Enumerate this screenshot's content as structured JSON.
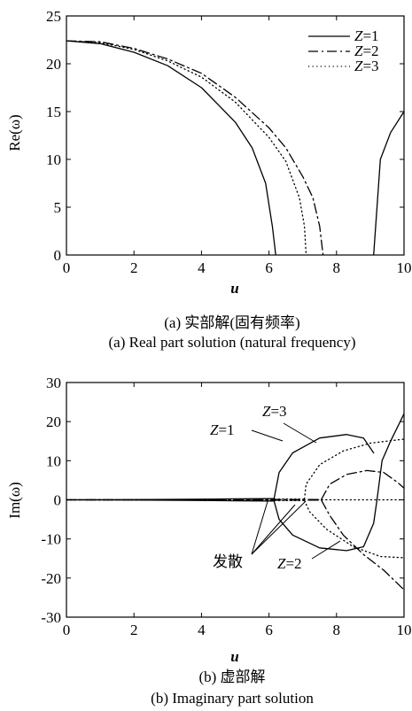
{
  "chart_data": [
    {
      "type": "line",
      "caption_cn": "(a) 实部解(固有频率)",
      "caption_en": "(a) Real part solution (natural frequency)",
      "xlabel": "u",
      "ylabel": "Re(ω)",
      "xlim": [
        0,
        10
      ],
      "ylim": [
        0,
        25
      ],
      "xticks": [
        0,
        2,
        4,
        6,
        8,
        10
      ],
      "yticks": [
        0,
        5,
        10,
        15,
        20,
        25
      ],
      "legend": "top-right",
      "series": [
        {
          "name": "Z=1",
          "style": "solid",
          "segments": [
            [
              [
                0,
                22.4
              ],
              [
                1,
                22.1
              ],
              [
                2,
                21.2
              ],
              [
                3,
                19.8
              ],
              [
                4,
                17.5
              ],
              [
                5,
                13.9
              ],
              [
                5.5,
                11.2
              ],
              [
                5.9,
                7.5
              ],
              [
                6.1,
                3.0
              ],
              [
                6.2,
                0
              ]
            ],
            [
              [
                9.1,
                0
              ],
              [
                9.3,
                10.0
              ],
              [
                9.6,
                12.8
              ],
              [
                10,
                15.0
              ]
            ]
          ]
        },
        {
          "name": "Z=2",
          "style": "dashdot",
          "segments": [
            [
              [
                0,
                22.4
              ],
              [
                1,
                22.3
              ],
              [
                2,
                21.6
              ],
              [
                3,
                20.5
              ],
              [
                4,
                19.0
              ],
              [
                5,
                16.5
              ],
              [
                6,
                13.3
              ],
              [
                6.5,
                11.2
              ],
              [
                7,
                8.2
              ],
              [
                7.3,
                6.0
              ],
              [
                7.5,
                3.0
              ],
              [
                7.6,
                0
              ]
            ]
          ]
        },
        {
          "name": "Z=3",
          "style": "dotted",
          "segments": [
            [
              [
                0,
                22.4
              ],
              [
                1,
                22.2
              ],
              [
                2,
                21.5
              ],
              [
                3,
                20.3
              ],
              [
                4,
                18.6
              ],
              [
                5,
                16.0
              ],
              [
                6,
                12.3
              ],
              [
                6.5,
                9.8
              ],
              [
                6.9,
                6.0
              ],
              [
                7.05,
                3.0
              ],
              [
                7.1,
                0
              ]
            ]
          ]
        }
      ]
    },
    {
      "type": "line",
      "caption_cn": "(b) 虚部解",
      "caption_en": "(b) Imaginary part solution",
      "xlabel": "u",
      "ylabel": "Im(ω)",
      "xlim": [
        0,
        10
      ],
      "ylim": [
        -30,
        30
      ],
      "xticks": [
        0,
        2,
        4,
        6,
        8,
        10
      ],
      "yticks": [
        -30,
        -20,
        -10,
        0,
        10,
        20,
        30
      ],
      "annotations": [
        "Z=3",
        "Z=1",
        "Z=2",
        "发散"
      ],
      "series": [
        {
          "name": "Z=1",
          "style": "solid",
          "segments": [
            [
              [
                0,
                0
              ],
              [
                2,
                0.05
              ],
              [
                4,
                0.15
              ],
              [
                5,
                0.25
              ],
              [
                6,
                0.3
              ],
              [
                6.15,
                0.3
              ]
            ],
            [
              [
                0,
                0
              ],
              [
                2,
                -0.05
              ],
              [
                4,
                -0.15
              ],
              [
                5,
                -0.25
              ],
              [
                6,
                -0.3
              ],
              [
                6.15,
                -0.3
              ]
            ],
            [
              [
                6.15,
                0.3
              ],
              [
                6.3,
                7
              ],
              [
                6.7,
                12
              ],
              [
                7.5,
                15.8
              ],
              [
                8.3,
                16.7
              ],
              [
                8.8,
                15.8
              ],
              [
                9.1,
                12
              ]
            ],
            [
              [
                6.15,
                -0.3
              ],
              [
                6.3,
                -5
              ],
              [
                6.7,
                -9
              ],
              [
                7.5,
                -12.3
              ],
              [
                8.3,
                -13
              ],
              [
                8.8,
                -12
              ],
              [
                9.1,
                -6
              ],
              [
                9.2,
                0
              ],
              [
                9.35,
                10
              ],
              [
                9.6,
                15
              ],
              [
                10,
                22
              ]
            ]
          ]
        },
        {
          "name": "Z=2",
          "style": "dashdot",
          "segments": [
            [
              [
                0,
                0
              ],
              [
                3,
                0.05
              ],
              [
                5,
                0.1
              ],
              [
                6,
                0.1
              ],
              [
                7,
                0.1
              ],
              [
                7.55,
                0.1
              ]
            ],
            [
              [
                0,
                0
              ],
              [
                3,
                -0.05
              ],
              [
                5,
                -0.1
              ],
              [
                6,
                -0.1
              ],
              [
                7,
                -0.1
              ],
              [
                7.55,
                -0.1
              ]
            ],
            [
              [
                7.55,
                0.1
              ],
              [
                7.8,
                4
              ],
              [
                8.3,
                6.5
              ],
              [
                8.9,
                7.5
              ],
              [
                9.4,
                7
              ],
              [
                9.8,
                4.5
              ],
              [
                10,
                3
              ]
            ],
            [
              [
                7.55,
                -0.1
              ],
              [
                7.8,
                -4
              ],
              [
                8.2,
                -9
              ],
              [
                8.8,
                -14
              ],
              [
                9.4,
                -18
              ],
              [
                10,
                -23
              ]
            ]
          ]
        },
        {
          "name": "Z=3",
          "style": "dotted",
          "segments": [
            [
              [
                0,
                0
              ],
              [
                3,
                0.05
              ],
              [
                5,
                0.15
              ],
              [
                6.5,
                0.2
              ],
              [
                7.05,
                0.2
              ]
            ],
            [
              [
                0,
                0
              ],
              [
                3,
                -0.05
              ],
              [
                5,
                -0.15
              ],
              [
                6.5,
                -0.2
              ],
              [
                7.05,
                -0.2
              ]
            ],
            [
              [
                7.05,
                0.2
              ],
              [
                7.1,
                4
              ],
              [
                7.5,
                9
              ],
              [
                8.2,
                12.5
              ],
              [
                9,
                14.5
              ],
              [
                10,
                15.5
              ]
            ],
            [
              [
                7.05,
                -0.2
              ],
              [
                7.2,
                -3
              ],
              [
                7.7,
                -7.5
              ],
              [
                8.5,
                -12
              ],
              [
                9.3,
                -14.5
              ],
              [
                10,
                -14.8
              ]
            ],
            [
              [
                7.2,
                0
              ],
              [
                8,
                0
              ],
              [
                9,
                0
              ],
              [
                10,
                0
              ]
            ]
          ]
        }
      ]
    }
  ]
}
